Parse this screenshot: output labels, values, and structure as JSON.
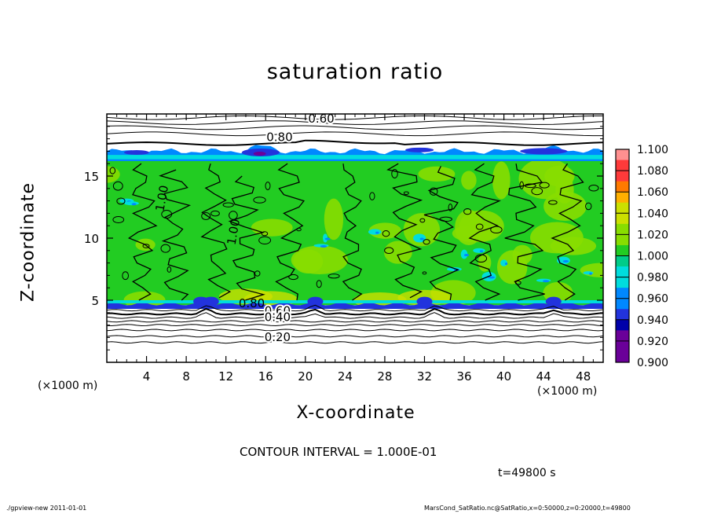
{
  "chart_data": {
    "type": "heatmap",
    "title": "saturation ratio",
    "xlabel": "X-coordinate",
    "ylabel": "Z-coordinate",
    "x_unit": "(×1000 m)",
    "xlim": [
      0,
      50
    ],
    "ylim": [
      0,
      20
    ],
    "x_ticks": [
      "4",
      "8",
      "12",
      "16",
      "20",
      "24",
      "28",
      "32",
      "36",
      "40",
      "44",
      "48"
    ],
    "y_ticks": [
      "5",
      "10",
      "15"
    ],
    "colorbar": {
      "ticks": [
        "1.100",
        "1.080",
        "1.060",
        "1.040",
        "1.020",
        "1.000",
        "0.980",
        "0.960",
        "0.940",
        "0.920",
        "0.900"
      ],
      "colors": [
        "#ff9090",
        "#ff3a3a",
        "#ff7a00",
        "#ffb000",
        "#cce000",
        "#88dd00",
        "#22cc22",
        "#00cc88",
        "#00dddd",
        "#0088ff",
        "#2233dd",
        "#0000aa",
        "#6a0099"
      ]
    },
    "contour_labels": [
      "0.60",
      "0.80",
      "1.00",
      "1.00",
      "0.80",
      "0.60",
      "0.40",
      "0.20"
    ],
    "contour_interval_text": "CONTOUR INTERVAL = 1.000E-01",
    "time_text": "t=49800 s"
  },
  "footer": {
    "left": "./gpview-new   2011-01-01",
    "right": "MarsCond_SatRatio.nc@SatRatio,x=0:50000,z=0:20000,t=49800"
  }
}
